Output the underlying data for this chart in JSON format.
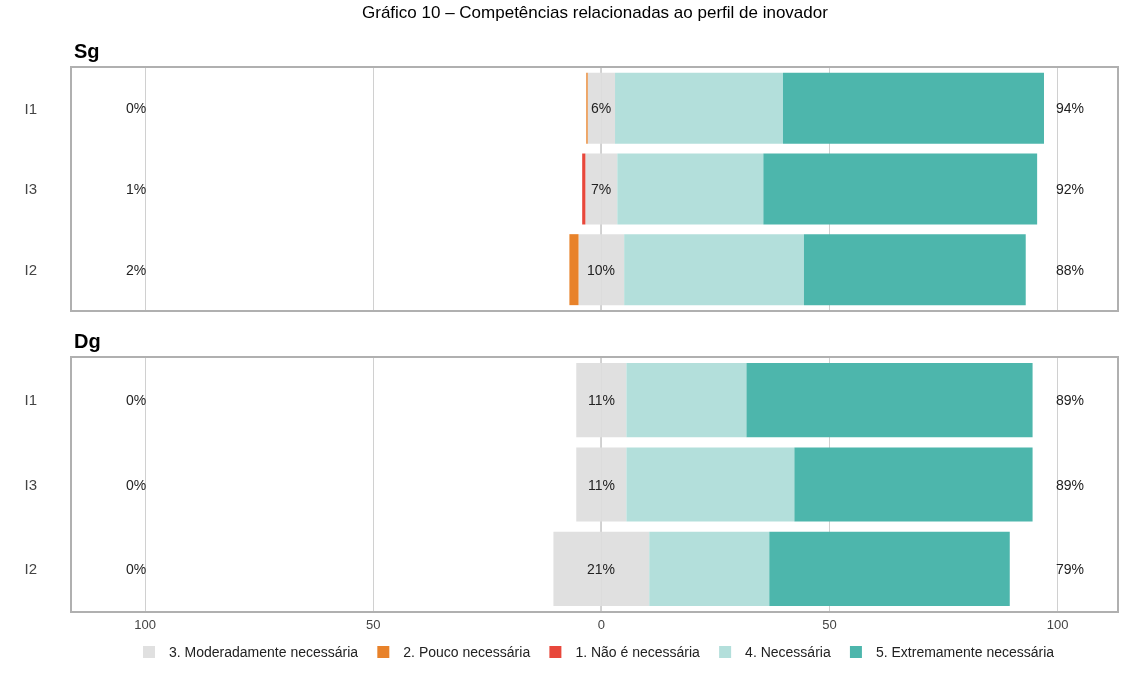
{
  "chart_data": [
    {
      "type": "bar",
      "orientation": "horizontal",
      "stacked": true,
      "title": "Gráfico 10 – Competências relacionadas ao perfil de inovador",
      "subtitle": "Sg",
      "categories": [
        "I1",
        "I3",
        "I2"
      ],
      "series": [
        {
          "color": "#e0e0e0",
          "values": [
            -3,
            -3.5,
            -5
          ]
        },
        {
          "color": "#e8822a",
          "values": [
            -0.3,
            0,
            -2
          ]
        },
        {
          "color": "#e8473b",
          "values": [
            0,
            -0.7,
            0
          ]
        },
        {
          "color": "#e0e0e0",
          "values": [
            3,
            3.5,
            5
          ]
        },
        {
          "color": "#b3dfdb",
          "values": [
            36.8,
            32,
            39.4
          ]
        },
        {
          "color": "#4db6ac",
          "values": [
            57.2,
            60,
            48.6
          ]
        }
      ],
      "annotations": [
        "0%",
        "1%",
        "2%",
        "6%",
        "7%",
        "10%",
        "94%",
        "92%",
        "88%"
      ],
      "ref_lines": [
        {
          "axis": "x",
          "value": 0,
          "color": "#000000"
        }
      ],
      "xlim": [
        -116,
        113
      ],
      "xticks": [
        {
          "value": -100,
          "label": null
        },
        {
          "value": -50,
          "label": null
        },
        {
          "value": 0,
          "label": null
        },
        {
          "value": 50,
          "label": null
        },
        {
          "value": 100,
          "label": null
        }
      ],
      "grid": "x",
      "legend": false,
      "tick_labels": "y"
    },
    {
      "type": "bar",
      "orientation": "horizontal",
      "stacked": true,
      "title": "Dg",
      "categories": [
        "I1",
        "I3",
        "I2"
      ],
      "series": [
        {
          "name": "3. Moderadamente necessária",
          "color": "#e0e0e0",
          "values": [
            -5.5,
            -5.5,
            -10.5
          ]
        },
        {
          "name": "2. Pouco necessária",
          "color": "#e8822a",
          "values": [
            0,
            0,
            0
          ]
        },
        {
          "name": "1. Não é necessária",
          "color": "#e8473b",
          "values": [
            0,
            0,
            0
          ]
        },
        {
          "color": "#e0e0e0",
          "values": [
            5.5,
            5.5,
            10.5
          ]
        },
        {
          "name": "4. Necessária",
          "color": "#b3dfdb",
          "values": [
            26.3,
            36.8,
            26.3
          ]
        },
        {
          "name": "5. Extremamente necessária",
          "color": "#4db6ac",
          "values": [
            62.7,
            52.2,
            52.7
          ]
        }
      ],
      "annotations": [
        "0%",
        "0%",
        "0%",
        "11%",
        "11%",
        "21%",
        "89%",
        "89%",
        "79%"
      ],
      "ref_lines": [
        {
          "axis": "x",
          "value": 0,
          "color": "#000000"
        }
      ],
      "xlim": [
        -116,
        113
      ],
      "xticks": [
        {
          "value": -100,
          "label": "100"
        },
        {
          "value": -50,
          "label": "50"
        },
        0,
        {
          "value": 50,
          "label": "50"
        },
        100
      ],
      "grid": "x",
      "legend": "bottom"
    }
  ]
}
